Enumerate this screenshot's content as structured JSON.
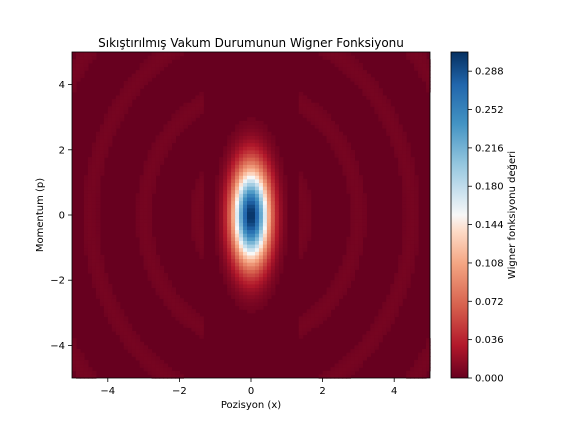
{
  "chart_data": {
    "type": "heatmap",
    "title": "Sıkıştırılmış Vakum Durumunun Wigner Fonksiyonu",
    "xlabel": "Pozisyon (x)",
    "ylabel": "Momentum (p)",
    "xlim": [
      -5,
      5
    ],
    "ylim": [
      -5,
      5
    ],
    "x_ticks": [
      -4,
      -2,
      0,
      2,
      4
    ],
    "y_ticks": [
      -4,
      -2,
      0,
      2,
      4
    ],
    "x_tick_labels": [
      "−4",
      "−2",
      "0",
      "2",
      "4"
    ],
    "y_tick_labels": [
      "−4",
      "−2",
      "0",
      "2",
      "4"
    ],
    "colorbar": {
      "label": "Wigner fonksiyonu değeri",
      "colormap": "RdBu",
      "range": [
        0.0,
        0.306
      ],
      "ticks": [
        0.0,
        0.036,
        0.072,
        0.108,
        0.144,
        0.18,
        0.216,
        0.252,
        0.288
      ],
      "tick_labels": [
        "0.000",
        "0.036",
        "0.072",
        "0.108",
        "0.144",
        "0.180",
        "0.216",
        "0.252",
        "0.288"
      ]
    },
    "peak": {
      "x": 0,
      "p": 0,
      "value": 0.306
    },
    "squeezed_gaussian": {
      "sigma_x": 0.35,
      "sigma_p": 1.0
    },
    "grid": false,
    "colors": {
      "low": "#67001f",
      "mid": "#f7f7f7",
      "high": "#053061"
    }
  }
}
